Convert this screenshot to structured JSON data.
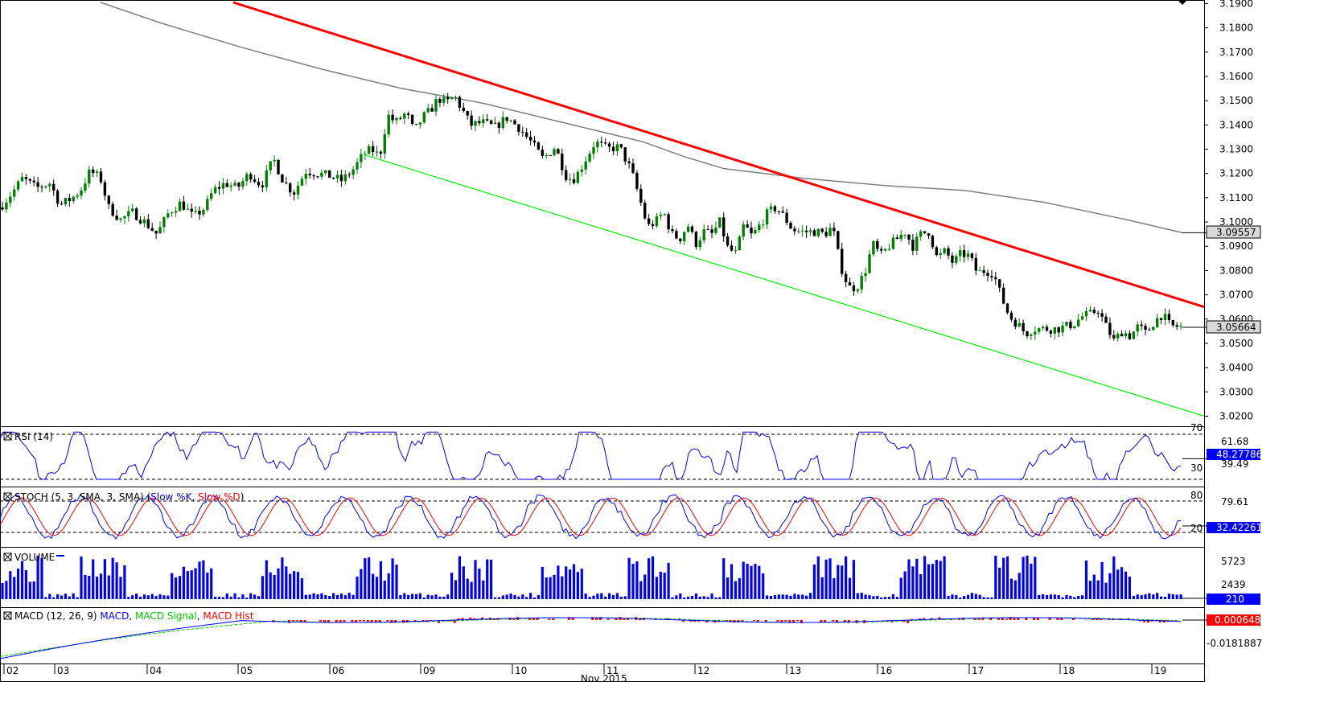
{
  "colors": {
    "bull": "#008000",
    "bear": "#000000",
    "resistance": "#ff0000",
    "support": "#00ee00",
    "ma": "#808080",
    "rsi": "#0000ff",
    "stoch_k": "#0000ff",
    "stoch_d": "#ff0000",
    "volume": "#0000ff",
    "macd": "#0000ff",
    "macd_signal": "#00cc00",
    "macd_hist": "#ff0000",
    "price_tag_bg": "#d9d9d9",
    "value_tag_bg": "#0000ff"
  },
  "chart_data": {
    "type": "candlestick",
    "price_ylim": [
      3.0165,
      3.1905
    ],
    "price_ticks": [
      "3.1900",
      "3.1800",
      "3.1700",
      "3.1600",
      "3.1500",
      "3.1400",
      "3.1300",
      "3.1200",
      "3.1100",
      "3.1000",
      "3.0900",
      "3.0800",
      "3.0700",
      "3.0600",
      "3.0500",
      "3.0400",
      "3.0300",
      "3.0200"
    ],
    "price_tick_values": [
      3.19,
      3.18,
      3.17,
      3.16,
      3.15,
      3.14,
      3.13,
      3.12,
      3.11,
      3.1,
      3.09,
      3.08,
      3.07,
      3.06,
      3.05,
      3.04,
      3.03,
      3.02
    ],
    "current_price": "3.05664",
    "ma_value": "3.09557",
    "close_path": [
      {
        "x": 0,
        "y": 3.106
      },
      {
        "x": 15,
        "y": 3.112
      },
      {
        "x": 28,
        "y": 3.118
      },
      {
        "x": 45,
        "y": 3.114
      },
      {
        "x": 62,
        "y": 3.116
      },
      {
        "x": 75,
        "y": 3.107
      },
      {
        "x": 90,
        "y": 3.11
      },
      {
        "x": 100,
        "y": 3.113
      },
      {
        "x": 112,
        "y": 3.121
      },
      {
        "x": 125,
        "y": 3.118
      },
      {
        "x": 135,
        "y": 3.106
      },
      {
        "x": 150,
        "y": 3.101
      },
      {
        "x": 165,
        "y": 3.104
      },
      {
        "x": 180,
        "y": 3.1
      },
      {
        "x": 195,
        "y": 3.095
      },
      {
        "x": 210,
        "y": 3.104
      },
      {
        "x": 225,
        "y": 3.108
      },
      {
        "x": 240,
        "y": 3.102
      },
      {
        "x": 255,
        "y": 3.106
      },
      {
        "x": 265,
        "y": 3.113
      },
      {
        "x": 280,
        "y": 3.116
      },
      {
        "x": 295,
        "y": 3.114
      },
      {
        "x": 310,
        "y": 3.12
      },
      {
        "x": 325,
        "y": 3.115
      },
      {
        "x": 340,
        "y": 3.126
      },
      {
        "x": 352,
        "y": 3.117
      },
      {
        "x": 365,
        "y": 3.112
      },
      {
        "x": 380,
        "y": 3.121
      },
      {
        "x": 395,
        "y": 3.12
      },
      {
        "x": 410,
        "y": 3.119
      },
      {
        "x": 425,
        "y": 3.117
      },
      {
        "x": 440,
        "y": 3.122
      },
      {
        "x": 452,
        "y": 3.128
      },
      {
        "x": 462,
        "y": 3.13
      },
      {
        "x": 472,
        "y": 3.127
      },
      {
        "x": 482,
        "y": 3.144
      },
      {
        "x": 492,
        "y": 3.141
      },
      {
        "x": 505,
        "y": 3.145
      },
      {
        "x": 515,
        "y": 3.137
      },
      {
        "x": 525,
        "y": 3.143
      },
      {
        "x": 535,
        "y": 3.146
      },
      {
        "x": 545,
        "y": 3.151
      },
      {
        "x": 555,
        "y": 3.149
      },
      {
        "x": 565,
        "y": 3.152
      },
      {
        "x": 575,
        "y": 3.146
      },
      {
        "x": 585,
        "y": 3.14
      },
      {
        "x": 600,
        "y": 3.141
      },
      {
        "x": 615,
        "y": 3.139
      },
      {
        "x": 630,
        "y": 3.143
      },
      {
        "x": 645,
        "y": 3.139
      },
      {
        "x": 660,
        "y": 3.133
      },
      {
        "x": 675,
        "y": 3.126
      },
      {
        "x": 690,
        "y": 3.131
      },
      {
        "x": 705,
        "y": 3.118
      },
      {
        "x": 715,
        "y": 3.118
      },
      {
        "x": 725,
        "y": 3.124
      },
      {
        "x": 740,
        "y": 3.133
      },
      {
        "x": 755,
        "y": 3.13
      },
      {
        "x": 770,
        "y": 3.131
      },
      {
        "x": 785,
        "y": 3.121
      },
      {
        "x": 795,
        "y": 3.11
      },
      {
        "x": 805,
        "y": 3.098
      },
      {
        "x": 815,
        "y": 3.1
      },
      {
        "x": 825,
        "y": 3.104
      },
      {
        "x": 835,
        "y": 3.095
      },
      {
        "x": 845,
        "y": 3.093
      },
      {
        "x": 855,
        "y": 3.099
      },
      {
        "x": 865,
        "y": 3.091
      },
      {
        "x": 875,
        "y": 3.096
      },
      {
        "x": 885,
        "y": 3.095
      },
      {
        "x": 895,
        "y": 3.1
      },
      {
        "x": 905,
        "y": 3.089
      },
      {
        "x": 915,
        "y": 3.087
      },
      {
        "x": 925,
        "y": 3.099
      },
      {
        "x": 935,
        "y": 3.094
      },
      {
        "x": 945,
        "y": 3.099
      },
      {
        "x": 955,
        "y": 3.104
      },
      {
        "x": 965,
        "y": 3.106
      },
      {
        "x": 975,
        "y": 3.102
      },
      {
        "x": 985,
        "y": 3.097
      },
      {
        "x": 995,
        "y": 3.096
      },
      {
        "x": 1005,
        "y": 3.096
      },
      {
        "x": 1015,
        "y": 3.096
      },
      {
        "x": 1025,
        "y": 3.095
      },
      {
        "x": 1035,
        "y": 3.098
      },
      {
        "x": 1045,
        "y": 3.082
      },
      {
        "x": 1055,
        "y": 3.073
      },
      {
        "x": 1065,
        "y": 3.073
      },
      {
        "x": 1075,
        "y": 3.079
      },
      {
        "x": 1085,
        "y": 3.091
      },
      {
        "x": 1095,
        "y": 3.086
      },
      {
        "x": 1105,
        "y": 3.09
      },
      {
        "x": 1115,
        "y": 3.093
      },
      {
        "x": 1125,
        "y": 3.096
      },
      {
        "x": 1135,
        "y": 3.09
      },
      {
        "x": 1145,
        "y": 3.095
      },
      {
        "x": 1155,
        "y": 3.096
      },
      {
        "x": 1165,
        "y": 3.085
      },
      {
        "x": 1175,
        "y": 3.088
      },
      {
        "x": 1185,
        "y": 3.083
      },
      {
        "x": 1195,
        "y": 3.087
      },
      {
        "x": 1205,
        "y": 3.086
      },
      {
        "x": 1215,
        "y": 3.079
      },
      {
        "x": 1225,
        "y": 3.08
      },
      {
        "x": 1235,
        "y": 3.079
      },
      {
        "x": 1245,
        "y": 3.069
      },
      {
        "x": 1255,
        "y": 3.061
      },
      {
        "x": 1265,
        "y": 3.058
      },
      {
        "x": 1275,
        "y": 3.054
      },
      {
        "x": 1285,
        "y": 3.056
      },
      {
        "x": 1295,
        "y": 3.056
      },
      {
        "x": 1305,
        "y": 3.056
      },
      {
        "x": 1315,
        "y": 3.056
      },
      {
        "x": 1325,
        "y": 3.057
      },
      {
        "x": 1335,
        "y": 3.058
      },
      {
        "x": 1345,
        "y": 3.061
      },
      {
        "x": 1355,
        "y": 3.062
      },
      {
        "x": 1365,
        "y": 3.064
      },
      {
        "x": 1375,
        "y": 3.057
      },
      {
        "x": 1385,
        "y": 3.051
      },
      {
        "x": 1395,
        "y": 3.055
      },
      {
        "x": 1405,
        "y": 3.053
      },
      {
        "x": 1415,
        "y": 3.057
      },
      {
        "x": 1425,
        "y": 3.054
      },
      {
        "x": 1435,
        "y": 3.059
      },
      {
        "x": 1445,
        "y": 3.062
      },
      {
        "x": 1455,
        "y": 3.057
      },
      {
        "x": 1465,
        "y": 3.057
      },
      {
        "x": 1470,
        "y": 3.0566
      }
    ],
    "resistance_line": {
      "x1": 290,
      "y1": 3.1905,
      "x2": 1497,
      "y2": 3.065
    },
    "support_line": {
      "x1": 455,
      "y1": 3.1275,
      "x2": 1497,
      "y2": 3.02
    },
    "ma_line": [
      {
        "x": 125,
        "y": 3.1905
      },
      {
        "x": 200,
        "y": 3.182
      },
      {
        "x": 300,
        "y": 3.172
      },
      {
        "x": 400,
        "y": 3.163
      },
      {
        "x": 500,
        "y": 3.155
      },
      {
        "x": 600,
        "y": 3.149
      },
      {
        "x": 700,
        "y": 3.141
      },
      {
        "x": 800,
        "y": 3.133
      },
      {
        "x": 850,
        "y": 3.127
      },
      {
        "x": 900,
        "y": 3.122
      },
      {
        "x": 1000,
        "y": 3.118
      },
      {
        "x": 1100,
        "y": 3.115
      },
      {
        "x": 1200,
        "y": 3.113
      },
      {
        "x": 1300,
        "y": 3.108
      },
      {
        "x": 1400,
        "y": 3.101
      },
      {
        "x": 1470,
        "y": 3.0956
      }
    ],
    "x_axis": {
      "ticks": [
        {
          "x": 5,
          "label": "02"
        },
        {
          "x": 68,
          "label": "03"
        },
        {
          "x": 183,
          "label": "04"
        },
        {
          "x": 296,
          "label": "05"
        },
        {
          "x": 410,
          "label": "06"
        },
        {
          "x": 523,
          "label": "09"
        },
        {
          "x": 637,
          "label": "10"
        },
        {
          "x": 751,
          "label": "11"
        },
        {
          "x": 864,
          "label": "12"
        },
        {
          "x": 978,
          "label": "13"
        },
        {
          "x": 1091,
          "label": "16"
        },
        {
          "x": 1205,
          "label": "17"
        },
        {
          "x": 1318,
          "label": "18"
        },
        {
          "x": 1432,
          "label": "19"
        }
      ],
      "month_label": "Nov 2015"
    },
    "indicators": {
      "rsi": {
        "title": "RSI (14)",
        "ylim": [
          25,
          75
        ],
        "upper_label": "70",
        "lower_label": "30",
        "upper_value": "61.68",
        "lower_value": "39.49",
        "current": "48.27786"
      },
      "stoch": {
        "title": "STOCH (5, 3, SMA, 3, SMA)",
        "k_label": "Slow %K",
        "d_label": "Slow %D",
        "upper_label": "80",
        "lower_label": "20",
        "upper_value": "79.61",
        "current": "32.42261"
      },
      "volume": {
        "title": "VOLUME",
        "tick_high": "5723",
        "tick_low": "2439",
        "current": "210"
      },
      "macd": {
        "title": "MACD (12, 26, 9)",
        "macd_label": "MACD",
        "signal_label": "MACD Signal",
        "hist_label": "MACD Hist",
        "current": "0.000648",
        "tick_low": "-0.0181887"
      }
    }
  }
}
